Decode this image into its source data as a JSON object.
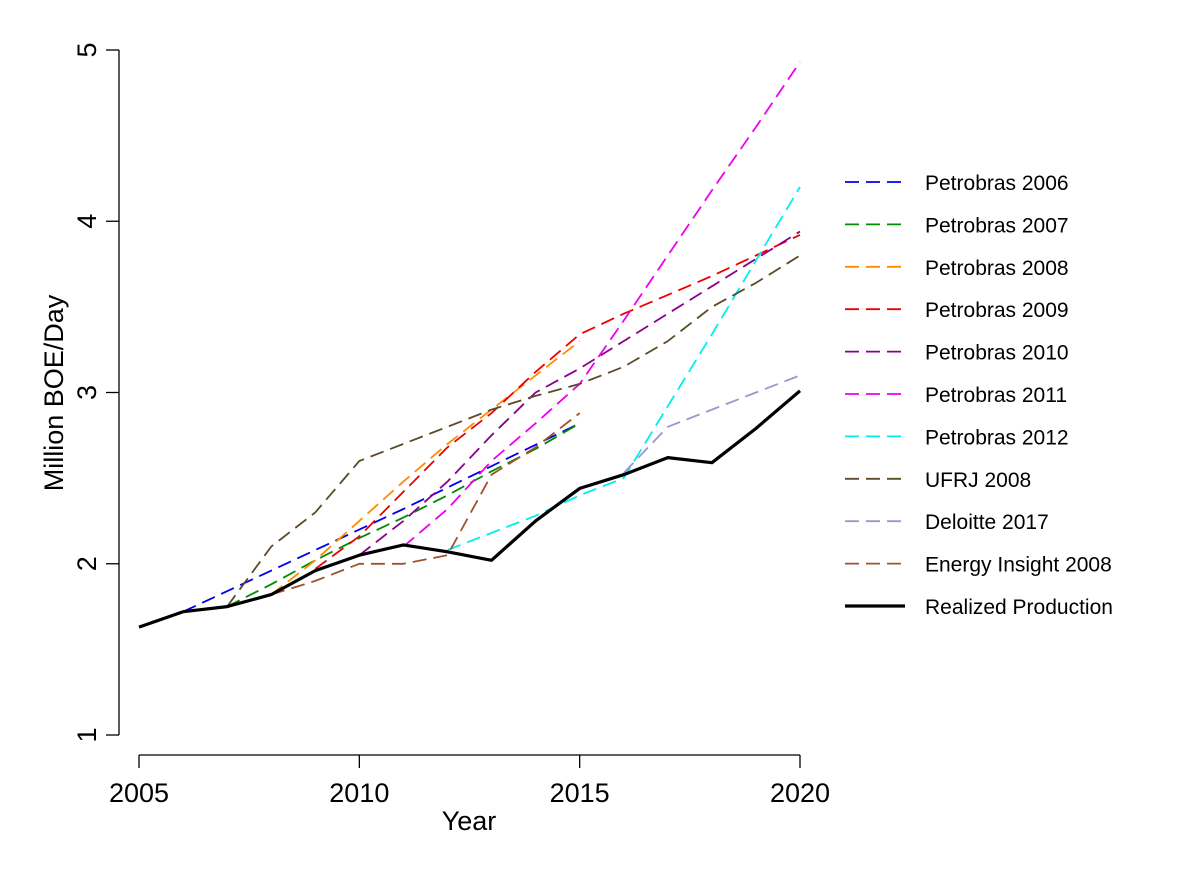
{
  "chart_data": {
    "type": "line",
    "title": "",
    "xlabel": "Year",
    "ylabel": "Million BOE/Day",
    "xlim": [
      2005,
      2020
    ],
    "ylim": [
      1,
      5
    ],
    "xticks": [
      "2005",
      "2010",
      "2015",
      "2020"
    ],
    "yticks": [
      "1",
      "2",
      "3",
      "4",
      "5"
    ],
    "legend_position": "right",
    "series": [
      {
        "name": "Petrobras 2006",
        "color": "#0000ee",
        "dash": "dashed",
        "points": [
          [
            2006,
            1.72
          ],
          [
            2011,
            2.32
          ],
          [
            2015,
            2.82
          ]
        ]
      },
      {
        "name": "Petrobras 2007",
        "color": "#008b00",
        "dash": "dashed",
        "points": [
          [
            2007,
            1.75
          ],
          [
            2008,
            1.88
          ],
          [
            2009,
            2.02
          ],
          [
            2010,
            2.15
          ],
          [
            2011,
            2.27
          ],
          [
            2012,
            2.4
          ],
          [
            2013,
            2.54
          ],
          [
            2014,
            2.67
          ],
          [
            2015,
            2.82
          ]
        ]
      },
      {
        "name": "Petrobras 2008",
        "color": "#ff8c00",
        "dash": "dashed",
        "points": [
          [
            2008,
            1.82
          ],
          [
            2009,
            2.02
          ],
          [
            2010,
            2.25
          ],
          [
            2011,
            2.48
          ],
          [
            2012,
            2.7
          ],
          [
            2013,
            2.9
          ],
          [
            2014,
            3.1
          ],
          [
            2015,
            3.3
          ]
        ]
      },
      {
        "name": "Petrobras 2009",
        "color": "#ee0000",
        "dash": "dashed",
        "points": [
          [
            2009,
            1.97
          ],
          [
            2010,
            2.16
          ],
          [
            2011,
            2.42
          ],
          [
            2012,
            2.68
          ],
          [
            2013,
            2.88
          ],
          [
            2014,
            3.12
          ],
          [
            2015,
            3.34
          ],
          [
            2016,
            3.46
          ],
          [
            2017,
            3.57
          ],
          [
            2018,
            3.68
          ],
          [
            2019,
            3.8
          ],
          [
            2020,
            3.92
          ]
        ]
      },
      {
        "name": "Petrobras 2010",
        "color": "#8b008b",
        "dash": "dashed",
        "points": [
          [
            2010,
            2.05
          ],
          [
            2011,
            2.25
          ],
          [
            2012,
            2.48
          ],
          [
            2013,
            2.75
          ],
          [
            2014,
            3.0
          ],
          [
            2015,
            3.14
          ],
          [
            2016,
            3.3
          ],
          [
            2017,
            3.46
          ],
          [
            2018,
            3.62
          ],
          [
            2019,
            3.78
          ],
          [
            2020,
            3.94
          ]
        ]
      },
      {
        "name": "Petrobras 2011",
        "color": "#ee00ee",
        "dash": "dashed",
        "points": [
          [
            2011,
            2.1
          ],
          [
            2012,
            2.32
          ],
          [
            2013,
            2.6
          ],
          [
            2014,
            2.82
          ],
          [
            2015,
            3.05
          ],
          [
            2016,
            3.42
          ],
          [
            2017,
            3.8
          ],
          [
            2018,
            4.18
          ],
          [
            2019,
            4.55
          ],
          [
            2020,
            4.93
          ]
        ]
      },
      {
        "name": "Petrobras 2012",
        "color": "#00eeee",
        "dash": "dashed",
        "points": [
          [
            2012,
            2.08
          ],
          [
            2013,
            2.18
          ],
          [
            2014,
            2.28
          ],
          [
            2015,
            2.4
          ],
          [
            2016,
            2.5
          ],
          [
            2017,
            2.92
          ],
          [
            2018,
            3.34
          ],
          [
            2019,
            3.77
          ],
          [
            2020,
            4.2
          ]
        ]
      },
      {
        "name": "UFRJ 2008",
        "color": "#5c4a28",
        "dash": "dashed",
        "points": [
          [
            2007,
            1.75
          ],
          [
            2008,
            2.1
          ],
          [
            2009,
            2.3
          ],
          [
            2010,
            2.6
          ],
          [
            2011,
            2.7
          ],
          [
            2012,
            2.8
          ],
          [
            2013,
            2.9
          ],
          [
            2014,
            2.98
          ],
          [
            2015,
            3.05
          ],
          [
            2016,
            3.15
          ],
          [
            2017,
            3.3
          ],
          [
            2018,
            3.5
          ],
          [
            2019,
            3.64
          ],
          [
            2020,
            3.8
          ]
        ]
      },
      {
        "name": "Deloitte 2017",
        "color": "#9a96cf",
        "dash": "dashed",
        "points": [
          [
            2016,
            2.53
          ],
          [
            2017,
            2.8
          ],
          [
            2018,
            2.9
          ],
          [
            2019,
            3.0
          ],
          [
            2020,
            3.1
          ]
        ]
      },
      {
        "name": "Energy Insight 2008",
        "color": "#a0522d",
        "dash": "dashed",
        "points": [
          [
            2008,
            1.82
          ],
          [
            2009,
            1.9
          ],
          [
            2010,
            2.0
          ],
          [
            2011,
            2.0
          ],
          [
            2012,
            2.05
          ],
          [
            2013,
            2.52
          ],
          [
            2014,
            2.68
          ],
          [
            2015,
            2.88
          ]
        ]
      },
      {
        "name": "Realized Production",
        "color": "#000000",
        "dash": "solid",
        "points": [
          [
            2005,
            1.63
          ],
          [
            2006,
            1.72
          ],
          [
            2007,
            1.75
          ],
          [
            2008,
            1.82
          ],
          [
            2009,
            1.96
          ],
          [
            2010,
            2.05
          ],
          [
            2011,
            2.11
          ],
          [
            2012,
            2.07
          ],
          [
            2013,
            2.02
          ],
          [
            2014,
            2.25
          ],
          [
            2015,
            2.44
          ],
          [
            2016,
            2.52
          ],
          [
            2017,
            2.62
          ],
          [
            2018,
            2.59
          ],
          [
            2019,
            2.79
          ],
          [
            2020,
            3.01
          ]
        ]
      }
    ]
  }
}
